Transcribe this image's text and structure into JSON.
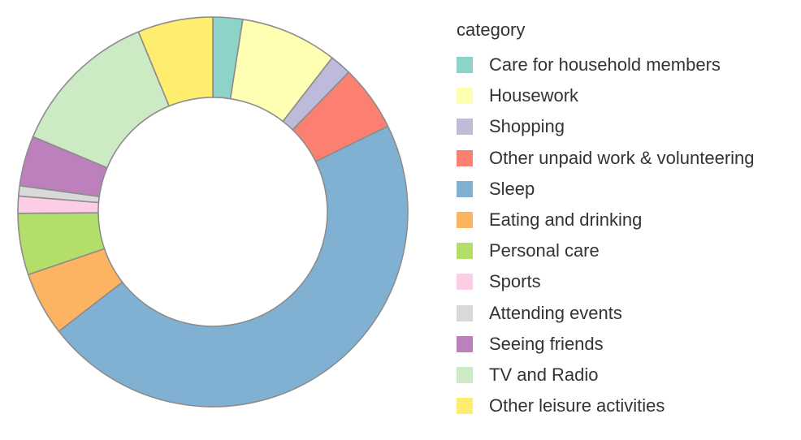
{
  "chart_data": {
    "type": "pie",
    "variant": "donut",
    "title": "",
    "legend": {
      "title": "category",
      "placement": "right"
    },
    "start_angle_deg": 0,
    "direction": "clockwise",
    "stroke_color": "#8c8c8c",
    "categories": [
      "Care for household members",
      "Housework",
      "Shopping",
      "Other unpaid work & volunteering",
      "Sleep",
      "Eating and drinking",
      "Personal care",
      "Sports",
      "Attending events",
      "Seeing friends",
      "TV and Radio",
      "Other leisure activities"
    ],
    "values": [
      2.6,
      8.5,
      1.9,
      5.8,
      49.5,
      5.6,
      5.4,
      1.5,
      0.9,
      4.4,
      13.2,
      6.6
    ],
    "value_unit": "percent",
    "colors": [
      "#8dd3c7",
      "#ffffb3",
      "#bebada",
      "#fb8072",
      "#80b1d3",
      "#fdb462",
      "#b3de69",
      "#fccde5",
      "#d9d9d9",
      "#bc80bd",
      "#ccebc5",
      "#ffed6f"
    ]
  }
}
